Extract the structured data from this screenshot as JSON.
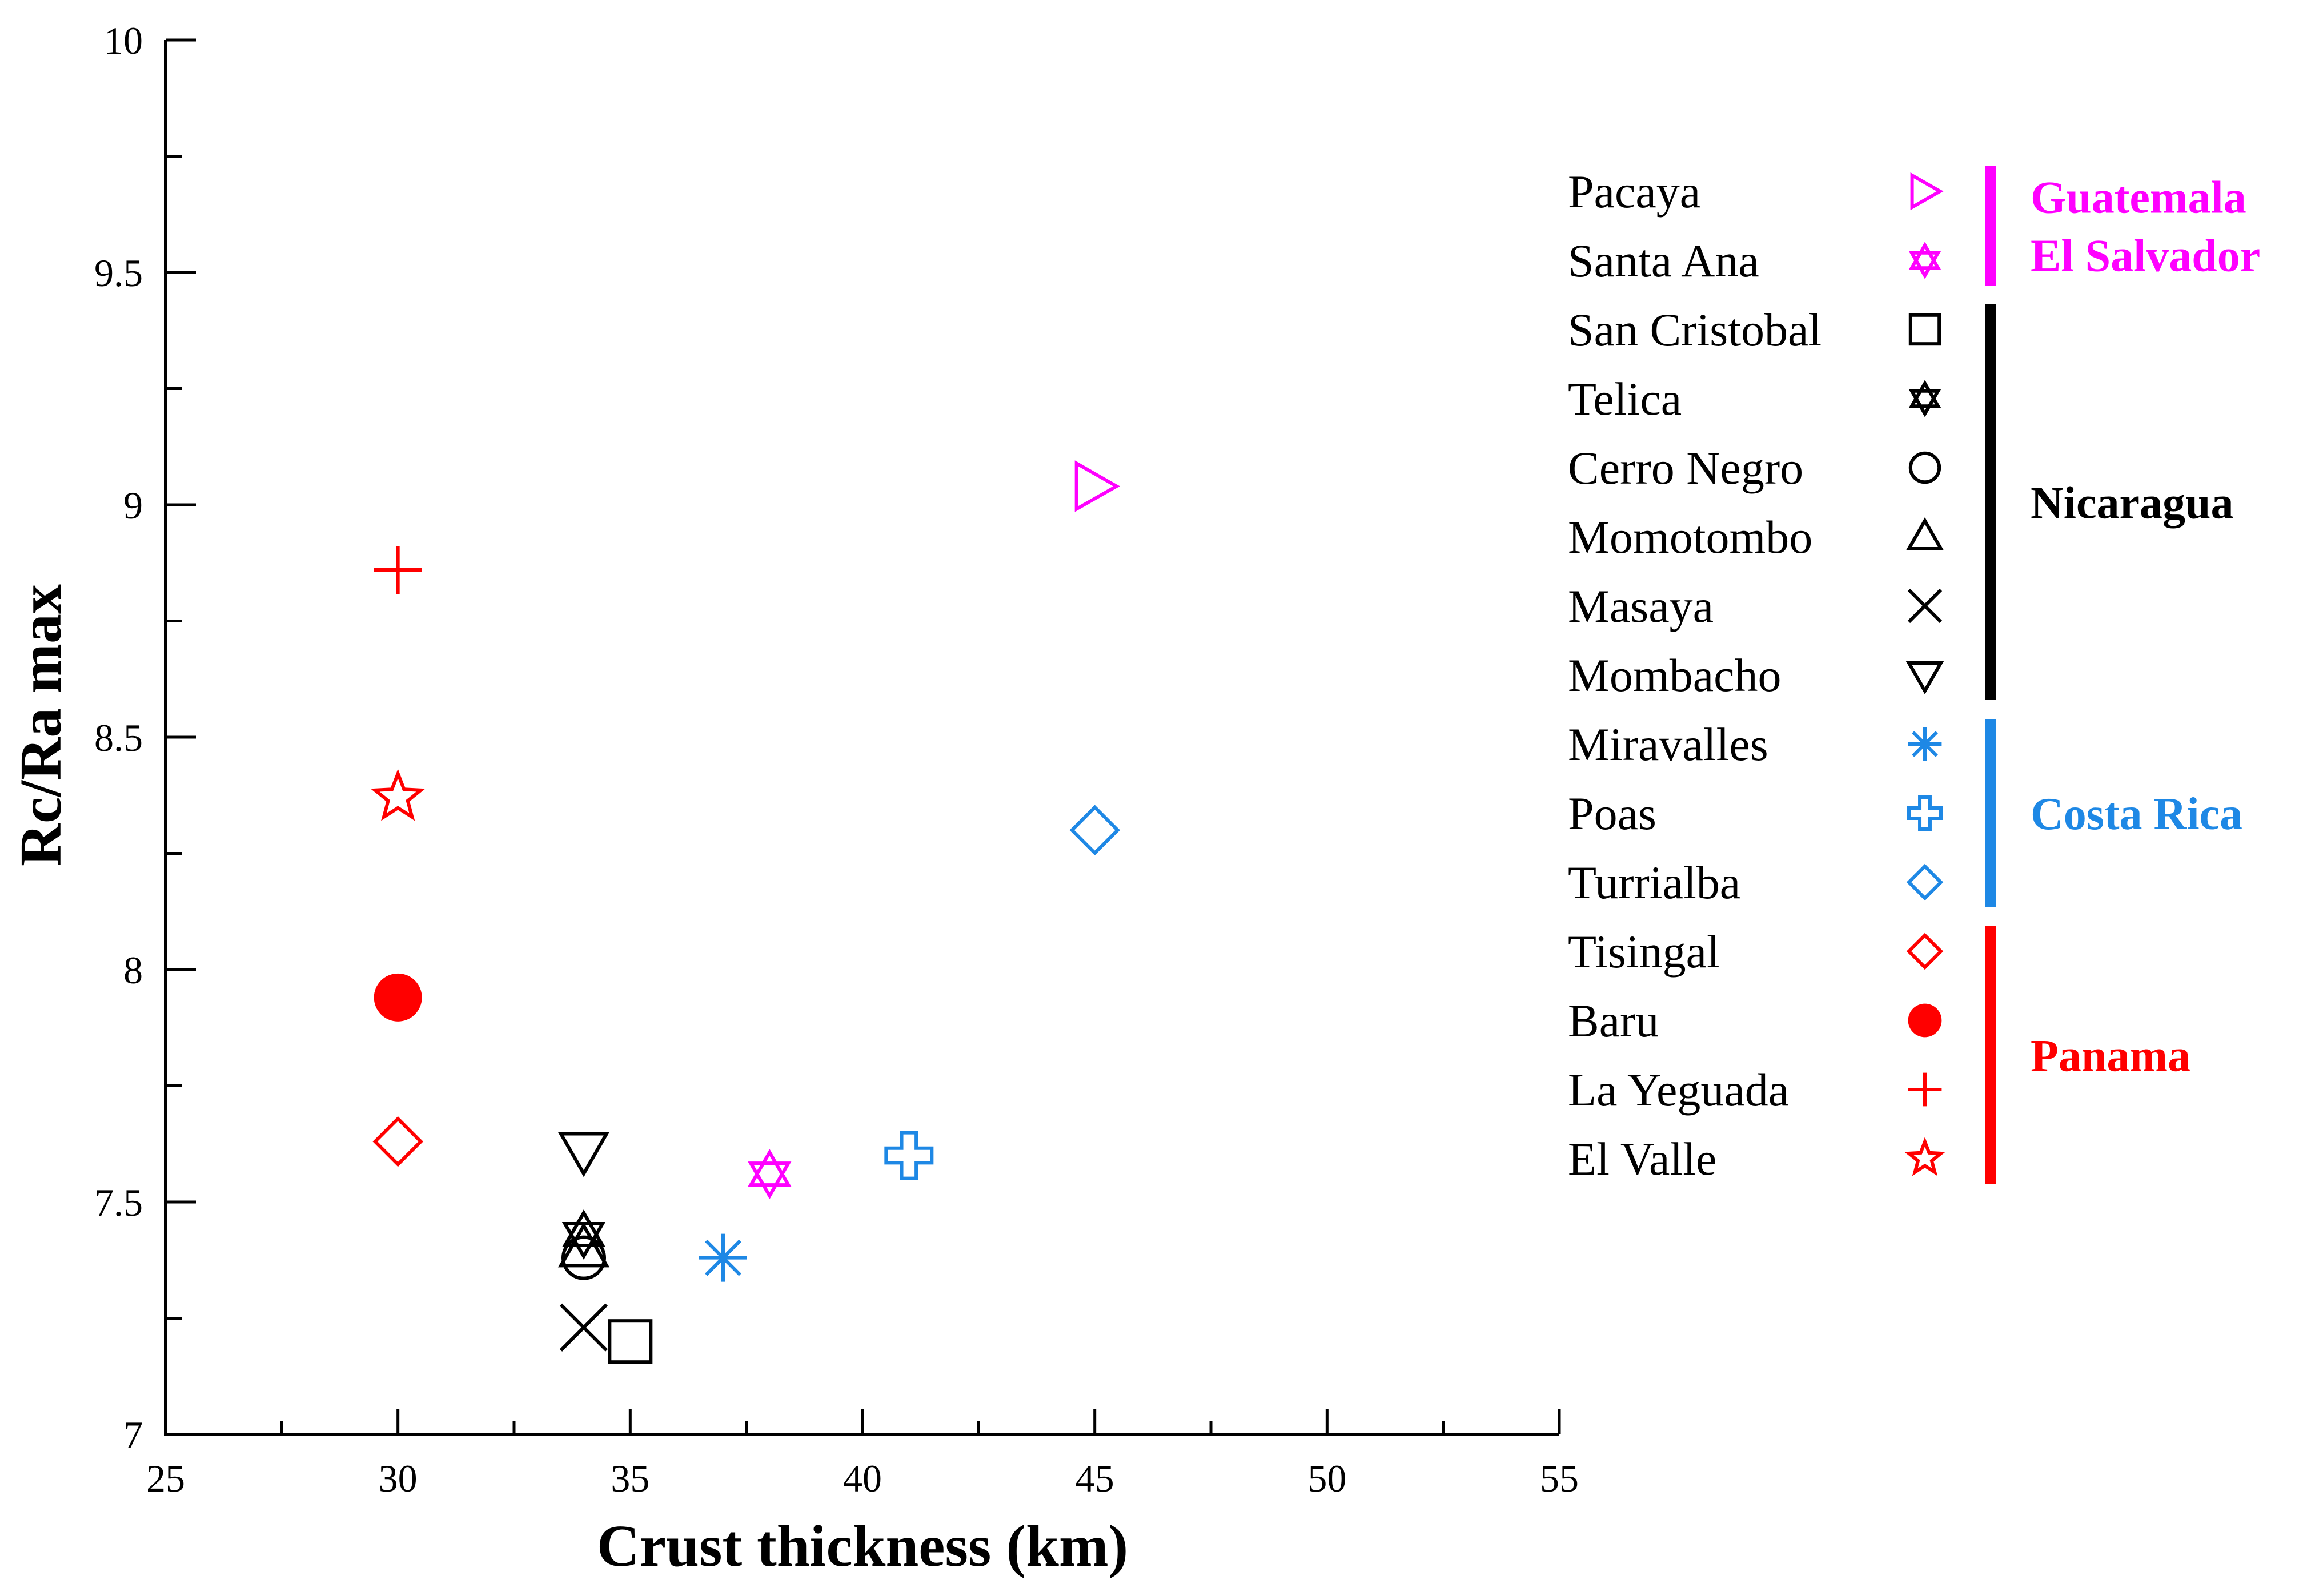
{
  "chart_data": {
    "type": "scatter",
    "title": "",
    "xlabel": "Crust thickness (km)",
    "ylabel": "Rc/Ra max",
    "xlim": [
      25,
      55
    ],
    "ylim": [
      7,
      10
    ],
    "xticks": [
      "25",
      "30",
      "35",
      "40",
      "45",
      "50",
      "55"
    ],
    "yticks": [
      "7",
      "7.5",
      "8",
      "8.5",
      "9",
      "9.5",
      "10"
    ],
    "grid": false,
    "legend_position": "right",
    "series": [
      {
        "name": "Pacaya",
        "country": "Guatemala",
        "marker": "triangle-right",
        "color": "#ff00ff",
        "x": 45,
        "y": 9.04
      },
      {
        "name": "Santa Ana",
        "country": "El Salvador",
        "marker": "hexagram",
        "color": "#ff00ff",
        "x": 38,
        "y": 7.56
      },
      {
        "name": "San Cristobal",
        "country": "Nicaragua",
        "marker": "square",
        "color": "#000000",
        "x": 35,
        "y": 7.2
      },
      {
        "name": "Telica",
        "country": "Nicaragua",
        "marker": "hexagram",
        "color": "#000000",
        "x": 34,
        "y": 7.43
      },
      {
        "name": "Cerro Negro",
        "country": "Nicaragua",
        "marker": "circle",
        "color": "#000000",
        "x": 34,
        "y": 7.38
      },
      {
        "name": "Momotombo",
        "country": "Nicaragua",
        "marker": "triangle-up",
        "color": "#000000",
        "x": 34,
        "y": 7.4
      },
      {
        "name": "Masaya",
        "country": "Nicaragua",
        "marker": "x",
        "color": "#000000",
        "x": 34,
        "y": 7.23
      },
      {
        "name": "Mombacho",
        "country": "Nicaragua",
        "marker": "triangle-down",
        "color": "#000000",
        "x": 34,
        "y": 7.61
      },
      {
        "name": "Miravalles",
        "country": "Costa Rica",
        "marker": "asterisk",
        "color": "#1e88e5",
        "x": 37,
        "y": 7.38
      },
      {
        "name": "Poas",
        "country": "Costa Rica",
        "marker": "cross-open",
        "color": "#1e88e5",
        "x": 41,
        "y": 7.6
      },
      {
        "name": "Turrialba",
        "country": "Costa Rica",
        "marker": "diamond",
        "color": "#1e88e5",
        "x": 45,
        "y": 8.3
      },
      {
        "name": "Tisingal",
        "country": "Panama",
        "marker": "diamond",
        "color": "#ff0000",
        "x": 30,
        "y": 7.63
      },
      {
        "name": "Baru",
        "country": "Panama",
        "marker": "circle-filled",
        "color": "#ff0000",
        "x": 30,
        "y": 7.94
      },
      {
        "name": "La Yeguada",
        "country": "Panama",
        "marker": "plus",
        "color": "#ff0000",
        "x": 30,
        "y": 8.86
      },
      {
        "name": "El Valle",
        "country": "Panama",
        "marker": "star",
        "color": "#ff0000",
        "x": 30,
        "y": 8.37
      }
    ],
    "country_groups": [
      {
        "labels": [
          "Guatemala",
          "El Salvador"
        ],
        "color": "#ff00ff",
        "members": [
          "Pacaya",
          "Santa Ana"
        ]
      },
      {
        "labels": [
          "Nicaragua"
        ],
        "color": "#000000",
        "members": [
          "San Cristobal",
          "Telica",
          "Cerro Negro",
          "Momotombo",
          "Masaya",
          "Mombacho"
        ]
      },
      {
        "labels": [
          "Costa Rica"
        ],
        "color": "#1e88e5",
        "members": [
          "Miravalles",
          "Poas",
          "Turrialba"
        ]
      },
      {
        "labels": [
          "Panama"
        ],
        "color": "#ff0000",
        "members": [
          "Tisingal",
          "Baru",
          "La Yeguada",
          "El Valle"
        ]
      }
    ]
  }
}
